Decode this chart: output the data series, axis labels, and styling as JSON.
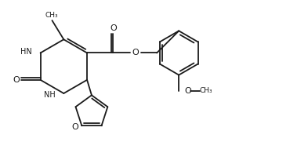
{
  "bg_color": "#ffffff",
  "line_color": "#1a1a1a",
  "line_width": 1.3,
  "font_size": 7.0,
  "xlim": [
    0,
    10
  ],
  "ylim": [
    0,
    4.6
  ]
}
